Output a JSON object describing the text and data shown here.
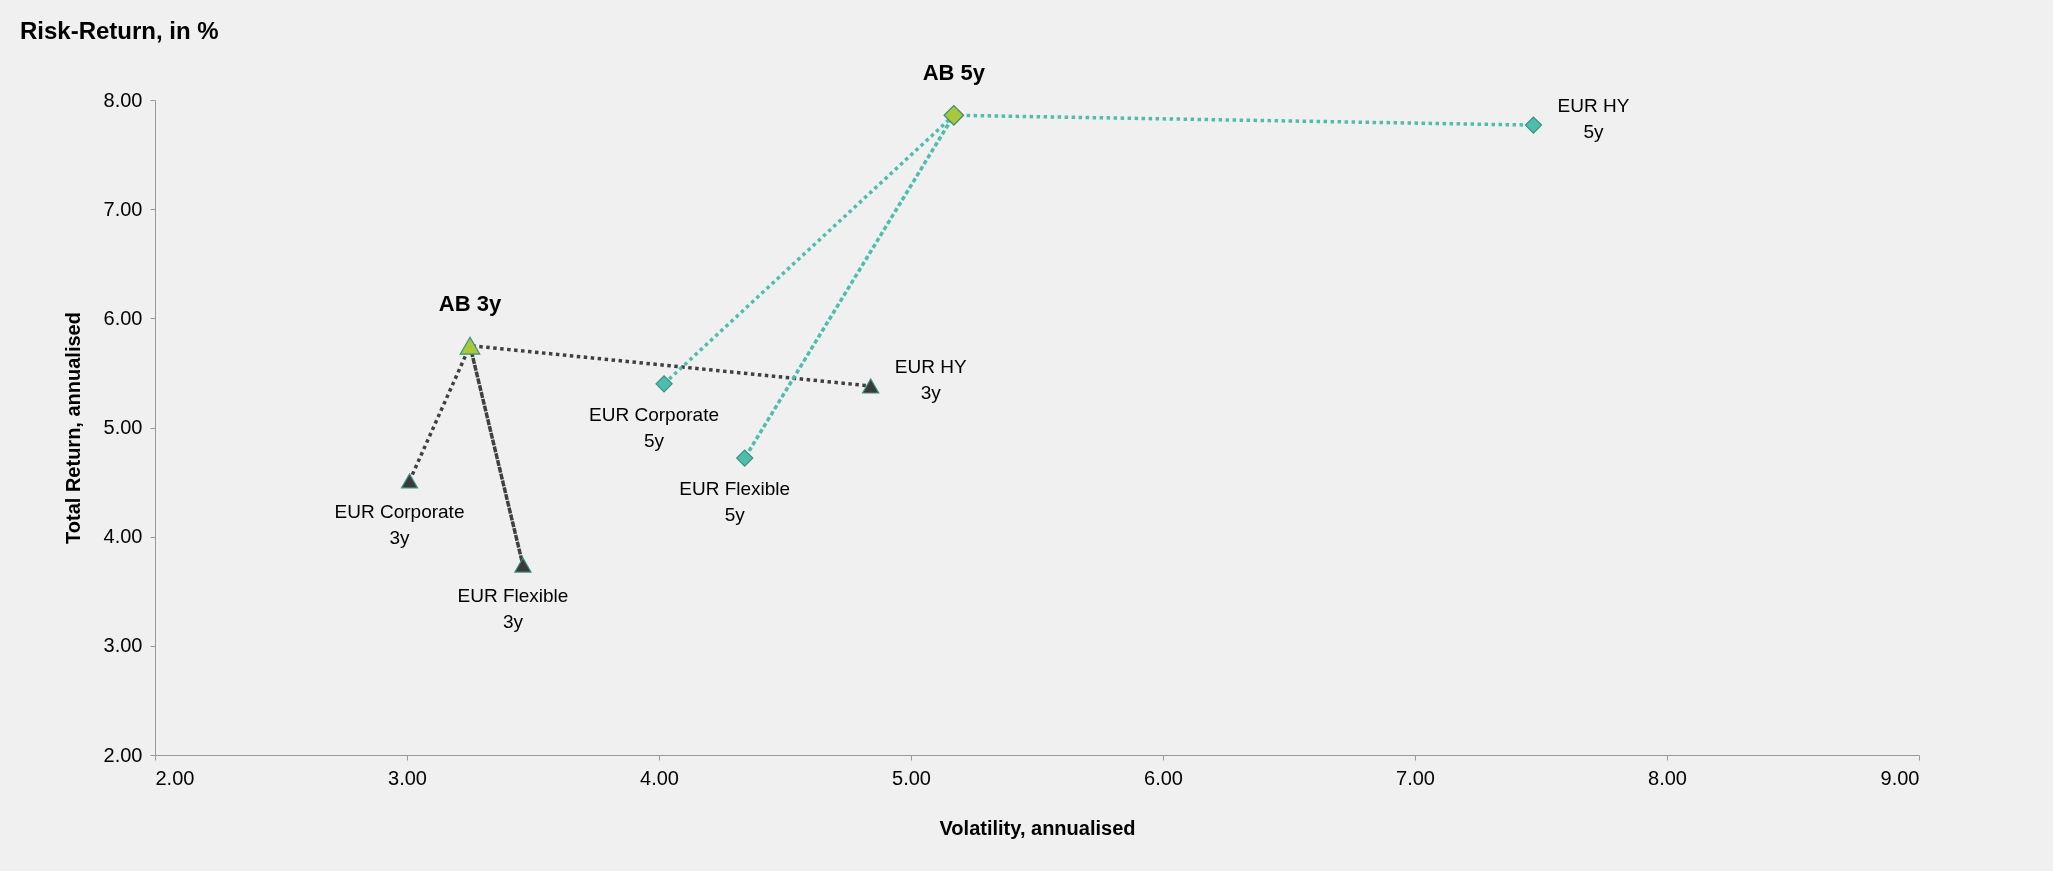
{
  "chart_data": {
    "type": "scatter",
    "title": "Risk-Return, in %",
    "xlabel": "Volatility, annualised",
    "ylabel": "Total Return, annualised",
    "xlim": [
      2,
      9
    ],
    "ylim": [
      2,
      8
    ],
    "xticks": [
      {
        "value": 2,
        "label": "2.00"
      },
      {
        "value": 3,
        "label": "3.00"
      },
      {
        "value": 4,
        "label": "4.00"
      },
      {
        "value": 5,
        "label": "5.00"
      },
      {
        "value": 6,
        "label": "6.00"
      },
      {
        "value": 7,
        "label": "7.00"
      },
      {
        "value": 8,
        "label": "8.00"
      },
      {
        "value": 9,
        "label": "9.00"
      }
    ],
    "yticks": [
      {
        "value": 2,
        "label": "2.00"
      },
      {
        "value": 3,
        "label": "3.00"
      },
      {
        "value": 4,
        "label": "4.00"
      },
      {
        "value": 5,
        "label": "5.00"
      },
      {
        "value": 6,
        "label": "6.00"
      },
      {
        "value": 7,
        "label": "7.00"
      },
      {
        "value": 8,
        "label": "8.00"
      }
    ],
    "grid": false,
    "series": [
      {
        "type": "line",
        "color": "#404040",
        "line_style": "dotted",
        "marker": "none",
        "x": [
          3.01,
          3.25,
          3.46,
          3.25,
          4.84
        ],
        "values": [
          4.51,
          5.75,
          3.74,
          5.75,
          5.38
        ]
      },
      {
        "type": "line",
        "color": "#4bbfaa",
        "line_style": "dotted",
        "marker": "none",
        "x": [
          4.02,
          5.17,
          4.34,
          5.17,
          7.47
        ],
        "values": [
          5.4,
          7.86,
          4.72,
          7.86,
          7.77
        ]
      },
      {
        "color": "#3a3a3a",
        "marker": "triangle",
        "x": [
          3.01,
          3.46,
          4.84
        ],
        "values": [
          4.51,
          3.74,
          5.38
        ]
      },
      {
        "color": "#4bbfaa",
        "marker": "diamond",
        "x": [
          4.02,
          4.34,
          7.47
        ],
        "values": [
          5.4,
          4.72,
          7.77
        ]
      },
      {
        "color": "#a8c838",
        "marker": "triangle",
        "x": [
          3.25
        ],
        "values": [
          5.75
        ]
      },
      {
        "color": "#a8c838",
        "marker": "diamond",
        "x": [
          5.17
        ],
        "values": [
          7.86
        ]
      }
    ],
    "annotations": [
      {
        "text": "AB 3y",
        "x": 3.25,
        "y": 5.75
      },
      {
        "text": "AB 5y",
        "x": 5.17,
        "y": 7.86
      },
      {
        "text": "EUR Corporate\n3y",
        "x": 3.01,
        "y": 4.51
      },
      {
        "text": "EUR Flexible\n3y",
        "x": 3.46,
        "y": 3.74
      },
      {
        "text": "EUR HY\n3y",
        "x": 4.84,
        "y": 5.38
      },
      {
        "text": "EUR Corporate\n5y",
        "x": 4.02,
        "y": 5.4
      },
      {
        "text": "EUR Flexible\n5y",
        "x": 4.34,
        "y": 4.72
      },
      {
        "text": "EUR HY\n5y",
        "x": 7.47,
        "y": 7.77
      }
    ]
  }
}
